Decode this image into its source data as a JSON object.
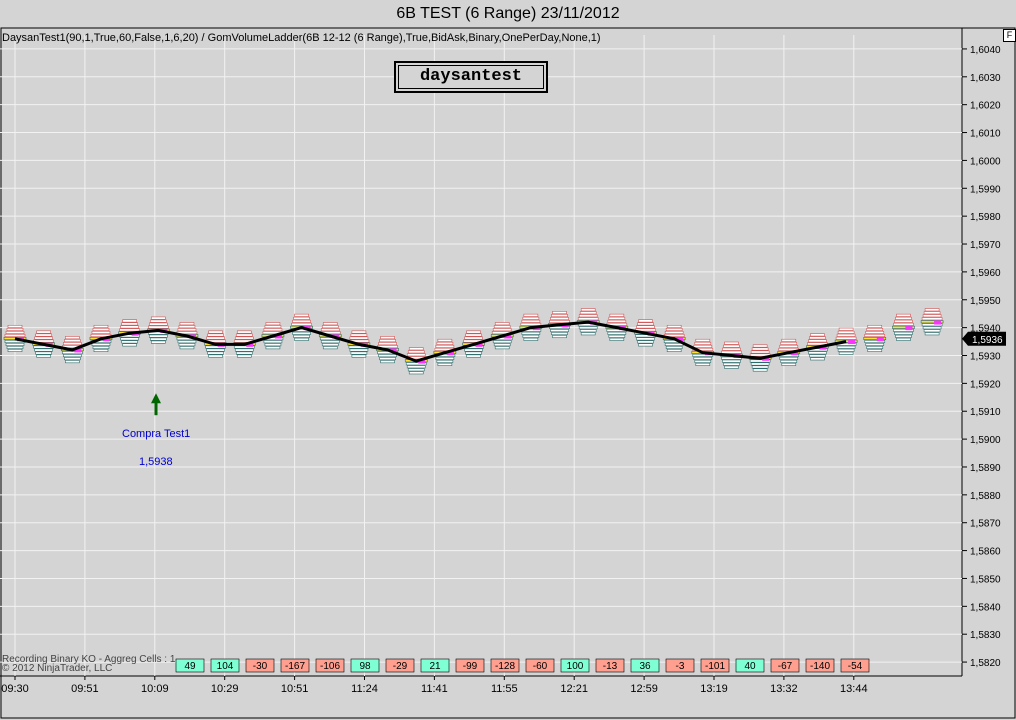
{
  "window": {
    "title": "6B TEST (6 Range)  23/11/2012"
  },
  "indicator_label": "DaysanTest1(90,1,True,60,False,1,6,20) / GomVolumeLadder(6B 12-12 (6 Range),True,BidAsk,Binary,OnePerDay,None,1)",
  "textbox": "daysantest",
  "f_button": "F",
  "status": {
    "line1": "Recording Binary KO - Aggreg Cells : 1",
    "line2": "© 2012 NinjaTrader, LLC"
  },
  "signal": {
    "label": "Compra Test1",
    "price": "1,5938"
  },
  "last_price": "1,5936",
  "colors": {
    "background": "#d4d4d4",
    "grid": "#f2f2f2",
    "price_line": "#000000",
    "ma_dot": "#ff33ff",
    "poc": "#ffe033",
    "delta_positive": "#7fffd4",
    "delta_negative": "#ff9f8f",
    "arrow": "#006600",
    "signal_text": "#0000cc"
  },
  "chart_data": {
    "type": "line",
    "ylim": [
      1.5815,
      1.6045
    ],
    "y_ticks": [
      "1,6040",
      "1,6030",
      "1,6020",
      "1,6010",
      "1,6000",
      "1,5990",
      "1,5980",
      "1,5970",
      "1,5960",
      "1,5950",
      "1,5940",
      "1,5930",
      "1,5920",
      "1,5910",
      "1,5900",
      "1,5890",
      "1,5880",
      "1,5870",
      "1,5860",
      "1,5850",
      "1,5840",
      "1,5830",
      "1,5820"
    ],
    "y_tick_values": [
      1.604,
      1.603,
      1.602,
      1.601,
      1.6,
      1.599,
      1.598,
      1.597,
      1.596,
      1.595,
      1.594,
      1.593,
      1.592,
      1.591,
      1.59,
      1.589,
      1.588,
      1.587,
      1.586,
      1.585,
      1.584,
      1.583,
      1.582
    ],
    "x_labels": [
      "09:30",
      "09:51",
      "10:09",
      "10:29",
      "10:51",
      "11:24",
      "11:41",
      "11:55",
      "12:21",
      "12:59",
      "13:19",
      "13:32",
      "13:44"
    ],
    "bar_count": 29,
    "x_label_bar_index": [
      0,
      3,
      6,
      9,
      12,
      15,
      18,
      21,
      24,
      27,
      30,
      33,
      36
    ],
    "close": [
      1.5936,
      1.5934,
      1.5932,
      1.5936,
      1.5938,
      1.5939,
      1.5937,
      1.5934,
      1.5934,
      1.5937,
      1.594,
      1.5937,
      1.5934,
      1.5932,
      1.5928,
      1.5931,
      1.5934,
      1.5937,
      1.594,
      1.5941,
      1.5942,
      1.594,
      1.5938,
      1.5936,
      1.5931,
      1.593,
      1.5929,
      1.5931,
      1.5933
    ],
    "close_tail": [
      1.5935,
      1.5936,
      1.594,
      1.5942,
      1.594,
      1.5936,
      1.5935,
      1.5936
    ],
    "delta_values": [
      "49",
      "104",
      "-30",
      "-167",
      "-106",
      "98",
      "-29",
      "21",
      "-99",
      "-128",
      "-60",
      "100",
      "-13",
      "36",
      "-3",
      "-101",
      "40",
      "-67",
      "-140",
      "-54"
    ],
    "signal_bar_index": 6,
    "signal_price": 1.5938
  }
}
